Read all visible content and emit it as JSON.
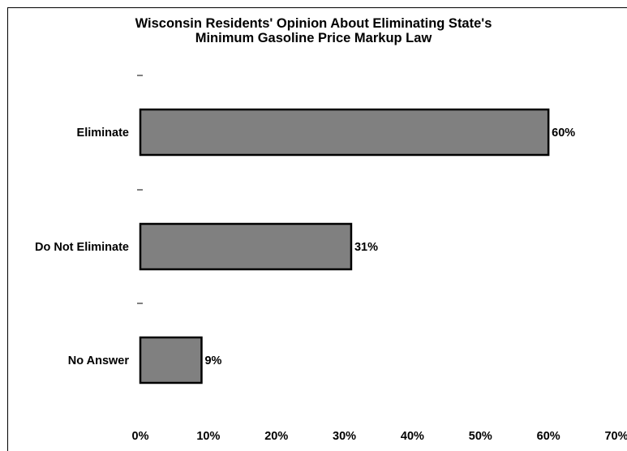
{
  "chart_data": {
    "type": "bar",
    "orientation": "horizontal",
    "title_lines": [
      "Wisconsin Residents' Opinion About Eliminating State's",
      "Minimum Gasoline Price Markup Law"
    ],
    "categories": [
      "Eliminate",
      "Do Not Eliminate",
      "No Answer"
    ],
    "values": [
      60,
      31,
      9
    ],
    "value_labels": [
      "60%",
      "31%",
      "9%"
    ],
    "xlim": [
      0,
      70
    ],
    "x_ticks": [
      0,
      10,
      20,
      30,
      40,
      50,
      60,
      70
    ],
    "x_tick_labels": [
      "0%",
      "10%",
      "20%",
      "30%",
      "40%",
      "50%",
      "60%",
      "70%"
    ],
    "xlabel": "",
    "ylabel": "",
    "grid": false,
    "legend": "none",
    "bar_color": "#808080",
    "bar_edge_color": "#000000"
  }
}
